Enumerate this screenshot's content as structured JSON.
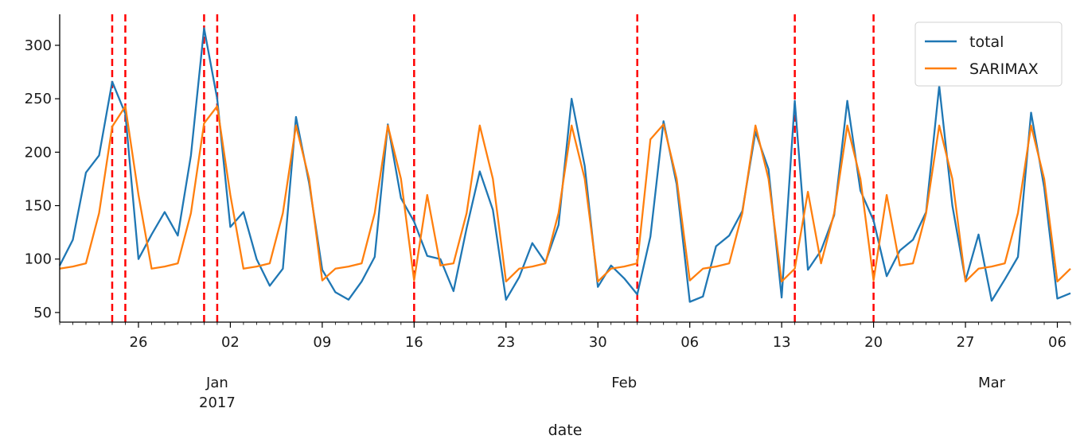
{
  "chart_data": {
    "type": "line",
    "xlabel": "date",
    "ylabel": "",
    "x_start": "2016-12-20",
    "x_end": "2017-03-07",
    "ylim": [
      41,
      329
    ],
    "yticks": [
      50,
      100,
      150,
      200,
      250,
      300
    ],
    "grid": false,
    "legend_position": "top-right",
    "colors": {
      "total": "#1f77b4",
      "SARIMAX": "#ff7f0e",
      "vlines": "#ff0000",
      "axis": "#000000"
    },
    "x_ticks": [
      {
        "date": "2016-12-26",
        "label": "26"
      },
      {
        "date": "2017-01-02",
        "label": "02"
      },
      {
        "date": "2017-01-09",
        "label": "09"
      },
      {
        "date": "2017-01-16",
        "label": "16"
      },
      {
        "date": "2017-01-23",
        "label": "23"
      },
      {
        "date": "2017-01-30",
        "label": "30"
      },
      {
        "date": "2017-02-06",
        "label": "06"
      },
      {
        "date": "2017-02-13",
        "label": "13"
      },
      {
        "date": "2017-02-20",
        "label": "20"
      },
      {
        "date": "2017-02-27",
        "label": "27"
      },
      {
        "date": "2017-03-06",
        "label": "06"
      }
    ],
    "month_labels": [
      {
        "date": "2017-01-01",
        "label": "Jan",
        "sublabel": "2017"
      },
      {
        "date": "2017-02-01",
        "label": "Feb",
        "sublabel": ""
      },
      {
        "date": "2017-03-01",
        "label": "Mar",
        "sublabel": ""
      }
    ],
    "vlines": [
      "2016-12-24",
      "2016-12-25",
      "2016-12-31",
      "2017-01-01",
      "2017-01-16",
      "2017-02-02",
      "2017-02-14",
      "2017-02-20"
    ],
    "dates": [
      "2016-12-20",
      "2016-12-21",
      "2016-12-22",
      "2016-12-23",
      "2016-12-24",
      "2016-12-25",
      "2016-12-26",
      "2016-12-27",
      "2016-12-28",
      "2016-12-29",
      "2016-12-30",
      "2016-12-31",
      "2017-01-01",
      "2017-01-02",
      "2017-01-03",
      "2017-01-04",
      "2017-01-05",
      "2017-01-06",
      "2017-01-07",
      "2017-01-08",
      "2017-01-09",
      "2017-01-10",
      "2017-01-11",
      "2017-01-12",
      "2017-01-13",
      "2017-01-14",
      "2017-01-15",
      "2017-01-16",
      "2017-01-17",
      "2017-01-18",
      "2017-01-19",
      "2017-01-20",
      "2017-01-21",
      "2017-01-22",
      "2017-01-23",
      "2017-01-24",
      "2017-01-25",
      "2017-01-26",
      "2017-01-27",
      "2017-01-28",
      "2017-01-29",
      "2017-01-30",
      "2017-01-31",
      "2017-02-01",
      "2017-02-02",
      "2017-02-03",
      "2017-02-04",
      "2017-02-05",
      "2017-02-06",
      "2017-02-07",
      "2017-02-08",
      "2017-02-09",
      "2017-02-10",
      "2017-02-11",
      "2017-02-12",
      "2017-02-13",
      "2017-02-14",
      "2017-02-15",
      "2017-02-16",
      "2017-02-17",
      "2017-02-18",
      "2017-02-19",
      "2017-02-20",
      "2017-02-21",
      "2017-02-22",
      "2017-02-23",
      "2017-02-24",
      "2017-02-25",
      "2017-02-26",
      "2017-02-27",
      "2017-02-28",
      "2017-03-01",
      "2017-03-02",
      "2017-03-03",
      "2017-03-04",
      "2017-03-05",
      "2017-03-06",
      "2017-03-07"
    ],
    "series": [
      {
        "name": "total",
        "values": [
          94,
          118,
          181,
          197,
          266,
          236,
          100,
          123,
          144,
          122,
          197,
          316,
          250,
          130,
          144,
          100,
          75,
          91,
          233,
          171,
          90,
          69,
          62,
          79,
          102,
          226,
          157,
          135,
          103,
          100,
          70,
          129,
          182,
          146,
          62,
          83,
          115,
          97,
          132,
          250,
          187,
          74,
          94,
          82,
          67,
          121,
          229,
          170,
          60,
          65,
          112,
          122,
          145,
          219,
          184,
          64,
          248,
          90,
          108,
          141,
          248,
          164,
          136,
          84,
          108,
          118,
          144,
          262,
          150,
          80,
          123,
          61,
          81,
          102,
          237,
          167,
          63,
          68
        ]
      },
      {
        "name": "SARIMAX",
        "values": [
          91,
          93,
          96,
          143,
          224,
          243,
          160,
          91,
          93,
          96,
          143,
          227,
          243,
          160,
          91,
          93,
          96,
          143,
          225,
          175,
          80,
          91,
          93,
          96,
          143,
          225,
          175,
          80,
          160,
          94,
          96,
          143,
          225,
          175,
          79,
          91,
          93,
          96,
          143,
          225,
          175,
          79,
          91,
          93,
          96,
          212,
          226,
          175,
          80,
          91,
          93,
          96,
          143,
          225,
          175,
          79,
          91,
          163,
          96,
          143,
          225,
          175,
          80,
          160,
          94,
          96,
          143,
          225,
          175,
          79,
          91,
          93,
          96,
          143,
          225,
          175,
          79,
          91
        ]
      }
    ]
  }
}
